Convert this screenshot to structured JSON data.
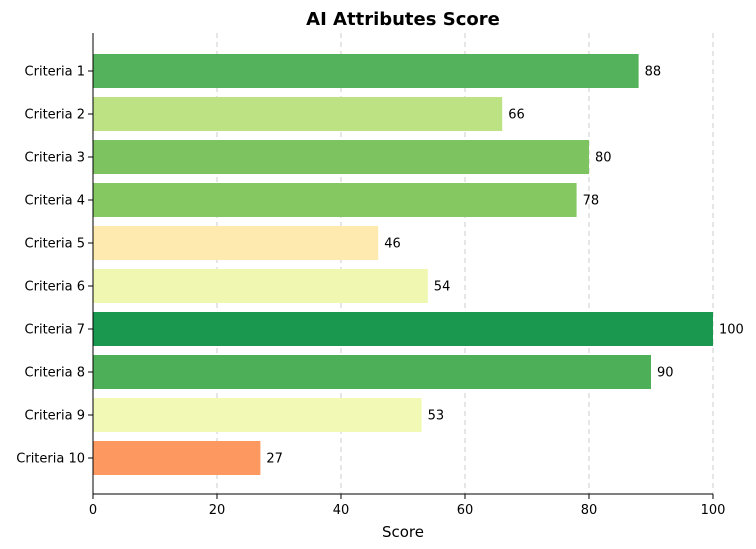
{
  "chart_data": {
    "type": "bar",
    "orientation": "horizontal",
    "title": "AI Attributes Score",
    "xlabel": "Score",
    "ylabel": "",
    "xlim": [
      0,
      100
    ],
    "xticks": [
      0,
      20,
      40,
      60,
      80,
      100
    ],
    "grid": "x-dashed",
    "categories": [
      "Criteria 1",
      "Criteria 2",
      "Criteria 3",
      "Criteria 4",
      "Criteria 5",
      "Criteria 6",
      "Criteria 7",
      "Criteria 8",
      "Criteria 9",
      "Criteria 10"
    ],
    "values": [
      88,
      66,
      80,
      78,
      46,
      54,
      100,
      90,
      53,
      27
    ],
    "colors": [
      "#53b25b",
      "#bce284",
      "#7dc460",
      "#85c862",
      "#feeaae",
      "#eff7b0",
      "#1a9850",
      "#4daf58",
      "#f1f9b4",
      "#fc9860"
    ]
  }
}
